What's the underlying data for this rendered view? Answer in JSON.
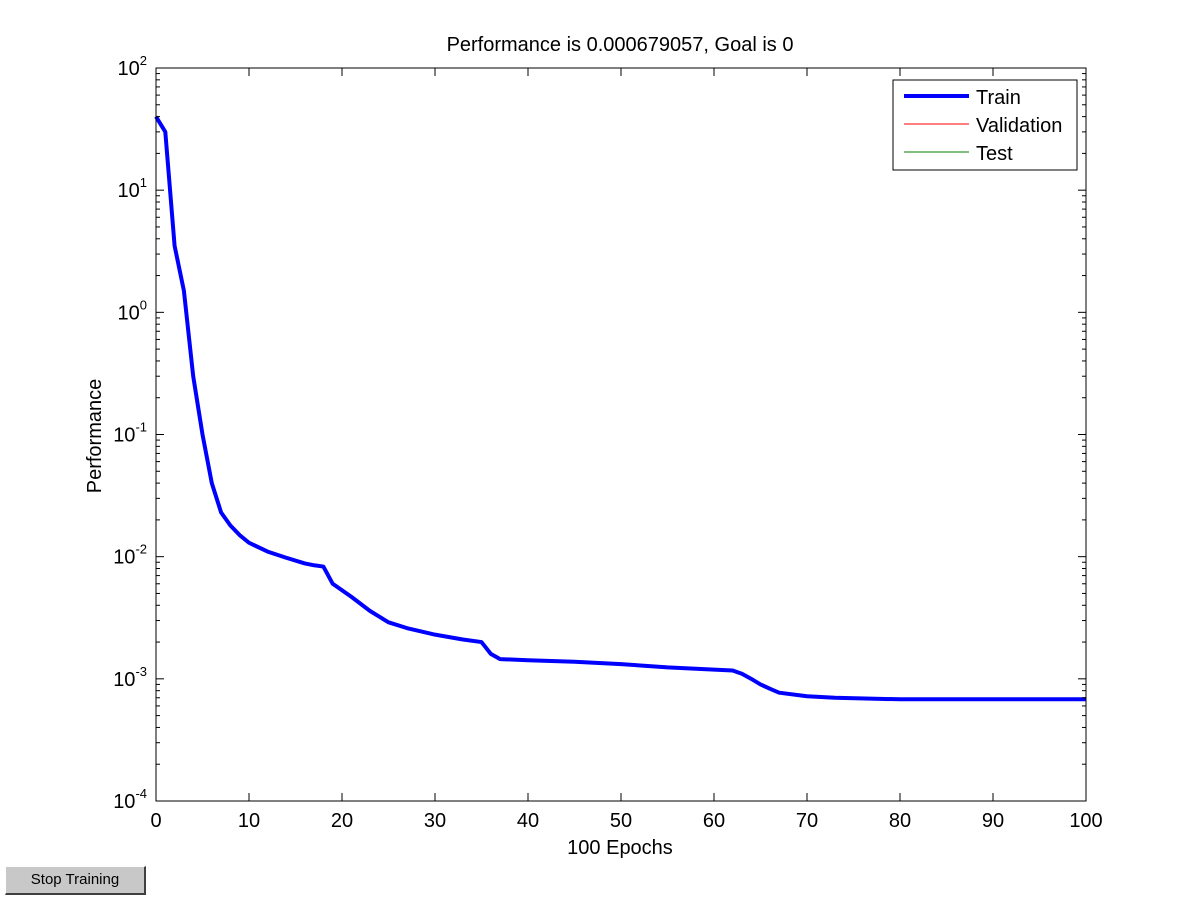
{
  "window": {
    "stop_button_label": "Stop Training"
  },
  "chart_data": {
    "type": "line",
    "title": "Performance is 0.000679057, Goal is 0",
    "xlabel": "100 Epochs",
    "ylabel": "Performance",
    "xlim": [
      0,
      100
    ],
    "ylim": [
      0.0001,
      100
    ],
    "yscale": "log",
    "grid": false,
    "legend_position": "top-right",
    "x_ticks": [
      0,
      10,
      20,
      30,
      40,
      50,
      60,
      70,
      80,
      90,
      100
    ],
    "y_ticks": [
      {
        "value": 100,
        "base": "10",
        "exp": "2"
      },
      {
        "value": 10,
        "base": "10",
        "exp": "1"
      },
      {
        "value": 1,
        "base": "10",
        "exp": "0"
      },
      {
        "value": 0.1,
        "base": "10",
        "exp": "-1"
      },
      {
        "value": 0.01,
        "base": "10",
        "exp": "-2"
      },
      {
        "value": 0.001,
        "base": "10",
        "exp": "-3"
      },
      {
        "value": 0.0001,
        "base": "10",
        "exp": "-4"
      }
    ],
    "series": [
      {
        "name": "Train",
        "color": "#0000ff",
        "line_style": "thick",
        "x": [
          0,
          1,
          2,
          3,
          4,
          5,
          6,
          7,
          8,
          9,
          10,
          12,
          14,
          16,
          17,
          18,
          19,
          21,
          23,
          25,
          27,
          30,
          33,
          35,
          36,
          37,
          40,
          45,
          50,
          55,
          60,
          62,
          63,
          64,
          65,
          66,
          67,
          70,
          73,
          80,
          90,
          100
        ],
        "y": [
          40,
          30,
          3.5,
          1.5,
          0.3,
          0.1,
          0.04,
          0.023,
          0.018,
          0.015,
          0.013,
          0.011,
          0.0098,
          0.0088,
          0.0085,
          0.0083,
          0.006,
          0.0047,
          0.0036,
          0.0029,
          0.0026,
          0.0023,
          0.0021,
          0.002,
          0.0016,
          0.00145,
          0.00142,
          0.00138,
          0.00132,
          0.00124,
          0.00119,
          0.00117,
          0.0011,
          0.001,
          0.0009,
          0.00083,
          0.00077,
          0.00072,
          0.0007,
          0.00068,
          0.00068,
          0.00068
        ]
      },
      {
        "name": "Validation",
        "color": "#ff0000",
        "line_style": "thin",
        "x": [],
        "y": []
      },
      {
        "name": "Test",
        "color": "#008000",
        "line_style": "thin",
        "x": [],
        "y": []
      }
    ]
  }
}
